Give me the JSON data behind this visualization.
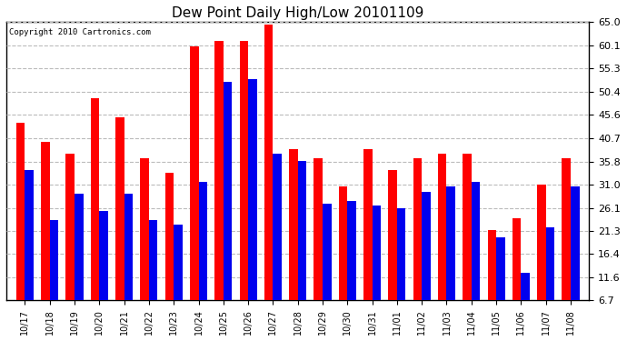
{
  "title": "Dew Point Daily High/Low 20101109",
  "copyright": "Copyright 2010 Cartronics.com",
  "dates": [
    "10/17",
    "10/18",
    "10/19",
    "10/20",
    "10/21",
    "10/22",
    "10/23",
    "10/24",
    "10/25",
    "10/26",
    "10/27",
    "10/28",
    "10/29",
    "10/30",
    "10/31",
    "11/01",
    "11/02",
    "11/03",
    "11/04",
    "11/05",
    "11/06",
    "11/07",
    "11/08"
  ],
  "highs": [
    44.0,
    40.0,
    37.5,
    49.0,
    45.0,
    36.5,
    33.5,
    60.0,
    61.0,
    61.0,
    64.5,
    38.5,
    36.5,
    30.5,
    38.5,
    34.0,
    36.5,
    37.5,
    37.5,
    21.5,
    24.0,
    31.0,
    36.5
  ],
  "lows": [
    34.0,
    23.5,
    29.0,
    25.5,
    29.0,
    23.5,
    22.5,
    31.5,
    52.5,
    53.0,
    37.5,
    36.0,
    27.0,
    27.5,
    26.5,
    26.0,
    29.5,
    30.5,
    31.5,
    20.0,
    12.5,
    22.0,
    30.5
  ],
  "bar_color_high": "#ff0000",
  "bar_color_low": "#0000ee",
  "background_color": "#ffffff",
  "grid_color": "#bbbbbb",
  "yticks": [
    6.7,
    11.6,
    16.4,
    21.3,
    26.1,
    31.0,
    35.8,
    40.7,
    45.6,
    50.4,
    55.3,
    60.1,
    65.0
  ],
  "ymin": 6.7,
  "ymax": 65.0,
  "bar_width": 0.35,
  "fig_width": 6.9,
  "fig_height": 3.75,
  "dpi": 100
}
